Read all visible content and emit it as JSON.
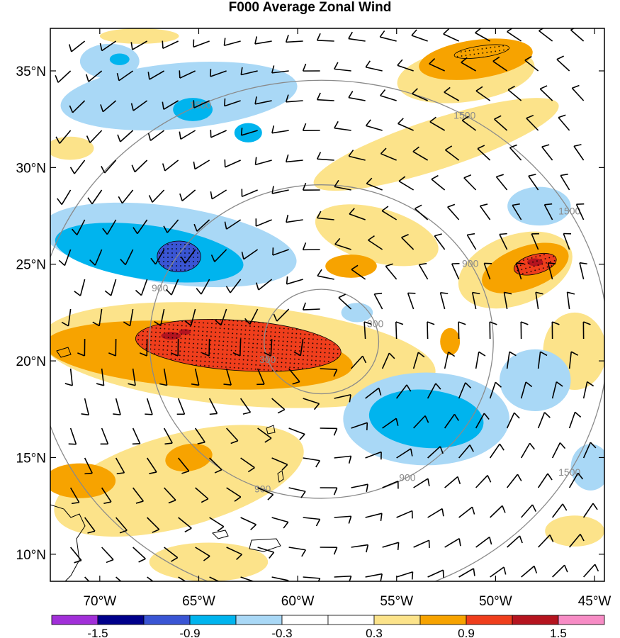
{
  "title": "F000 Average Zonal Wind",
  "map": {
    "lon_range": [
      -72.5,
      -44.5
    ],
    "lat_range": [
      8.6,
      37.2
    ],
    "lon_ticks": [
      {
        "value": -70,
        "label": "70°W"
      },
      {
        "value": -65,
        "label": "65°W"
      },
      {
        "value": -60,
        "label": "60°W"
      },
      {
        "value": -55,
        "label": "55°W"
      },
      {
        "value": -50,
        "label": "50°W"
      },
      {
        "value": -45,
        "label": "45°W"
      }
    ],
    "lat_ticks": [
      {
        "value": 35,
        "label": "35°N"
      },
      {
        "value": 30,
        "label": "30°N"
      },
      {
        "value": 25,
        "label": "25°N"
      },
      {
        "value": 20,
        "label": "20°N"
      },
      {
        "value": 15,
        "label": "15°N"
      },
      {
        "value": 10,
        "label": "10°N"
      }
    ],
    "storm_center": {
      "lon": -58.8,
      "lat": 21.0
    },
    "range_rings": [
      {
        "value": 300,
        "label": "300"
      },
      {
        "value": 900,
        "label": "900"
      },
      {
        "value": 1500,
        "label": "1500"
      }
    ],
    "colorbar": {
      "colors": [
        "#a12fd8",
        "#00008b",
        "#3a55d4",
        "#00b4ee",
        "#a9d8f6",
        "#ffffff",
        "#ffffff",
        "#fce38a",
        "#f7a300",
        "#ef3e1c",
        "#b5141f",
        "#f78cc5"
      ],
      "labels": [
        "-1.5",
        "-0.9",
        "-0.3",
        "0.3",
        "0.9",
        "1.5"
      ],
      "label_after_index": [
        1,
        3,
        5,
        7,
        9,
        11
      ]
    },
    "shading": [
      {
        "level": "0.3 to 0.6",
        "color": "#fce38a",
        "features": [
          {
            "lon": -51.5,
            "lat": 34.8,
            "rlon": 3.5,
            "rlat": 1.4,
            "rot": -8
          },
          {
            "lon": -53.0,
            "lat": 31.2,
            "rlon": 6.5,
            "rlat": 1.3,
            "rot": -18
          },
          {
            "lon": -56.0,
            "lat": 26.5,
            "rlon": 3.2,
            "rlat": 1.4,
            "rot": 15
          },
          {
            "lon": -63.0,
            "lat": 20.3,
            "rlon": 10.0,
            "rlat": 2.6,
            "rot": 5
          },
          {
            "lon": -49.0,
            "lat": 24.7,
            "rlon": 3.0,
            "rlat": 1.8,
            "rot": -20
          },
          {
            "lon": -66.0,
            "lat": 13.8,
            "rlon": 6.5,
            "rlat": 2.4,
            "rot": -15
          },
          {
            "lon": -46.0,
            "lat": 20.5,
            "rlon": 1.6,
            "rlat": 2.0,
            "rot": 0
          },
          {
            "lon": -64.5,
            "lat": 9.6,
            "rlon": 3.0,
            "rlat": 1.0,
            "rot": 0
          },
          {
            "lon": -46.0,
            "lat": 11.2,
            "rlon": 1.5,
            "rlat": 0.8,
            "rot": 0
          },
          {
            "lon": -71.5,
            "lat": 31.0,
            "rlon": 1.2,
            "rlat": 0.6,
            "rot": 0
          },
          {
            "lon": -68.0,
            "lat": 36.8,
            "rlon": 2.0,
            "rlat": 0.4,
            "rot": 0
          }
        ]
      },
      {
        "level": "0.6 to 0.9",
        "color": "#f7a300",
        "features": [
          {
            "lon": -51.0,
            "lat": 35.6,
            "rlon": 2.9,
            "rlat": 1.0,
            "rot": -8
          },
          {
            "lon": -48.5,
            "lat": 24.8,
            "rlon": 2.3,
            "rlat": 1.1,
            "rot": -20
          },
          {
            "lon": -65.0,
            "lat": 20.3,
            "rlon": 7.8,
            "rlat": 1.7,
            "rot": 4
          },
          {
            "lon": -71.0,
            "lat": 13.8,
            "rlon": 1.8,
            "rlat": 0.9,
            "rot": 0
          },
          {
            "lon": -65.5,
            "lat": 15.0,
            "rlon": 1.2,
            "rlat": 0.7,
            "rot": -10
          },
          {
            "lon": -57.3,
            "lat": 24.9,
            "rlon": 1.3,
            "rlat": 0.6,
            "rot": 0
          },
          {
            "lon": -52.3,
            "lat": 21.0,
            "rlon": 0.5,
            "rlat": 0.7,
            "rot": 0
          }
        ]
      },
      {
        "level": "0.9 to 1.2",
        "color": "#ef3e1c",
        "features": [
          {
            "lon": -63.0,
            "lat": 20.8,
            "rlon": 5.2,
            "rlat": 1.3,
            "rot": 4
          },
          {
            "lon": -48.0,
            "lat": 25.0,
            "rlon": 1.1,
            "rlat": 0.5,
            "rot": -15
          },
          {
            "lon": -59.2,
            "lat": 20.0,
            "rlon": 0.7,
            "rlat": 0.2,
            "rot": 0
          }
        ]
      },
      {
        "level": "1.2 to 1.5",
        "color": "#b5141f",
        "features": [
          {
            "lon": -66.4,
            "lat": 21.3,
            "rlon": 0.5,
            "rlat": 0.2,
            "rot": 0
          },
          {
            "lon": -65.7,
            "lat": 21.5,
            "rlon": 0.3,
            "rlat": 0.15,
            "rot": 0
          },
          {
            "lon": -48.0,
            "lat": 25.1,
            "rlon": 0.4,
            "rlat": 0.2,
            "rot": 0
          }
        ]
      },
      {
        "level": "-0.6 to -0.3",
        "color": "#a9d8f6",
        "features": [
          {
            "lon": -66.5,
            "lat": 26.0,
            "rlon": 6.5,
            "rlat": 2.0,
            "rot": 8
          },
          {
            "lon": -66.0,
            "lat": 33.7,
            "rlon": 6.0,
            "rlat": 1.7,
            "rot": -5
          },
          {
            "lon": -53.5,
            "lat": 17.0,
            "rlon": 4.2,
            "rlat": 2.4,
            "rot": 0
          },
          {
            "lon": -47.8,
            "lat": 28.0,
            "rlon": 1.6,
            "rlat": 1.0,
            "rot": 0
          },
          {
            "lon": -48.0,
            "lat": 19.0,
            "rlon": 1.8,
            "rlat": 1.6,
            "rot": 0
          },
          {
            "lon": -45.2,
            "lat": 14.5,
            "rlon": 1.0,
            "rlat": 1.2,
            "rot": 0
          },
          {
            "lon": -69.5,
            "lat": 35.5,
            "rlon": 1.5,
            "rlat": 0.9,
            "rot": 0
          },
          {
            "lon": -57.0,
            "lat": 22.5,
            "rlon": 0.8,
            "rlat": 0.5,
            "rot": 0
          }
        ]
      },
      {
        "level": "-0.9 to -0.6",
        "color": "#00b4ee",
        "features": [
          {
            "lon": -67.5,
            "lat": 25.6,
            "rlon": 4.8,
            "rlat": 1.4,
            "rot": 8
          },
          {
            "lon": -53.5,
            "lat": 17.0,
            "rlon": 2.9,
            "rlat": 1.5,
            "rot": 5
          },
          {
            "lon": -65.3,
            "lat": 33.0,
            "rlon": 1.0,
            "rlat": 0.6,
            "rot": 0
          },
          {
            "lon": -62.5,
            "lat": 31.8,
            "rlon": 0.7,
            "rlat": 0.5,
            "rot": 0
          },
          {
            "lon": -69.0,
            "lat": 35.6,
            "rlon": 0.5,
            "rlat": 0.3,
            "rot": 0
          }
        ]
      },
      {
        "level": "-1.2 to -0.9",
        "color": "#3a55d4",
        "features": [
          {
            "lon": -66.0,
            "lat": 25.4,
            "rlon": 1.1,
            "rlat": 0.8,
            "rot": 0
          }
        ]
      }
    ],
    "stippled_regions": [
      {
        "lon": -63.0,
        "lat": 20.8,
        "rlon": 5.2,
        "rlat": 1.3,
        "rot": 4
      },
      {
        "lon": -66.0,
        "lat": 25.4,
        "rlon": 1.1,
        "rlat": 0.8,
        "rot": 0
      },
      {
        "lon": -48.0,
        "lat": 25.0,
        "rlon": 1.1,
        "rlat": 0.5,
        "rot": -15
      },
      {
        "lon": -50.7,
        "lat": 36.0,
        "rlon": 1.4,
        "rlat": 0.3,
        "rot": -8
      }
    ]
  }
}
